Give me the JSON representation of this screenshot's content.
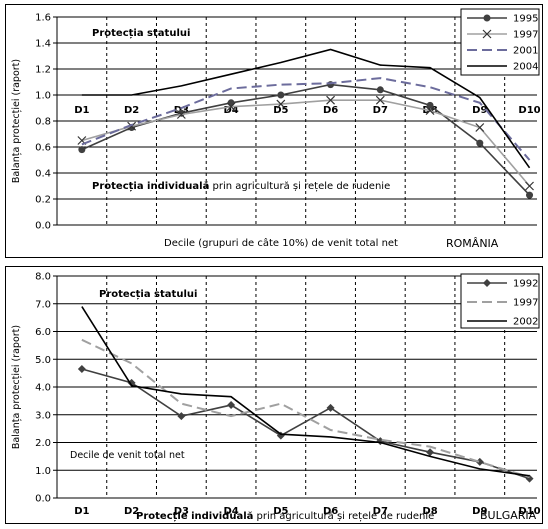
{
  "chart_data": [
    {
      "type": "line",
      "country": "ROMÂNIA",
      "ylabel": "Balanța protecției (raport)",
      "xlabel": "Decile (grupuri de câte 10%) de venit total net",
      "ylim": [
        0,
        1.6
      ],
      "yticks": [
        "0.0",
        "0.2",
        "0.4",
        "0.6",
        "0.8",
        "1.0",
        "1.2",
        "1.4",
        "1.6"
      ],
      "categories": [
        "D1",
        "D2",
        "D3",
        "D4",
        "D5",
        "D6",
        "D7",
        "D8",
        "D9",
        "D10"
      ],
      "annotation_top": "Protecția statului",
      "annotation_bottom_bold": "Protecția individuală",
      "annotation_bottom_rest": " prin agricultură și rețele de rudenie",
      "grid": "vertical-dashed, horizontal-solid",
      "legend_position": "top-right",
      "series": [
        {
          "name": "1995",
          "values": [
            0.58,
            0.75,
            0.86,
            0.94,
            1.0,
            1.08,
            1.04,
            0.92,
            0.63,
            0.23
          ],
          "color": "#404040",
          "marker": "circle",
          "dash": ""
        },
        {
          "name": "1997",
          "values": [
            0.65,
            0.76,
            0.85,
            0.91,
            0.93,
            0.96,
            0.96,
            0.88,
            0.75,
            0.3
          ],
          "color": "#a0a0a0",
          "marker": "x",
          "dash": ""
        },
        {
          "name": "2001",
          "values": [
            0.62,
            0.77,
            0.9,
            1.05,
            1.08,
            1.09,
            1.13,
            1.06,
            0.94,
            0.5
          ],
          "color": "#6c6c9c",
          "marker": "",
          "dash": "10,5"
        },
        {
          "name": "2004",
          "values": [
            1.0,
            1.0,
            1.07,
            1.16,
            1.25,
            1.35,
            1.23,
            1.21,
            0.98,
            0.44
          ],
          "color": "#000000",
          "marker": "",
          "dash": ""
        }
      ]
    },
    {
      "type": "line",
      "country": "BULGARIA",
      "ylabel": "Balanța protecției (raport)",
      "xlabel": "Protecție individuală prin agricultură și rețele de rudenie",
      "ylim": [
        0,
        8
      ],
      "yticks": [
        "0.0",
        "1.0",
        "2.0",
        "3.0",
        "4.0",
        "5.0",
        "6.0",
        "7.0",
        "8.0"
      ],
      "categories": [
        "D1",
        "D2",
        "D3",
        "D4",
        "D5",
        "D6",
        "D7",
        "D8",
        "D9",
        "D10"
      ],
      "annotation_top": "Protecția statului",
      "annotation_inner": "Decile de venit total net",
      "xlabel_bold": "Protecție individuală",
      "xlabel_rest": " prin agricultură și rețele de rudenie",
      "grid": "vertical-dashed, horizontal-solid",
      "legend_position": "top-right",
      "series": [
        {
          "name": "1992",
          "values": [
            4.65,
            4.15,
            2.95,
            3.35,
            2.25,
            3.25,
            2.05,
            1.65,
            1.3,
            0.7
          ],
          "color": "#404040",
          "marker": "diamond",
          "dash": ""
        },
        {
          "name": "1997",
          "values": [
            5.7,
            4.85,
            3.4,
            2.95,
            3.4,
            2.45,
            2.1,
            1.85,
            1.3,
            0.75
          ],
          "color": "#a0a0a0",
          "marker": "",
          "dash": "10,5"
        },
        {
          "name": "2002",
          "values": [
            6.9,
            4.05,
            3.75,
            3.65,
            2.3,
            2.2,
            2.0,
            1.5,
            1.05,
            0.8
          ],
          "color": "#000000",
          "marker": "",
          "dash": ""
        }
      ]
    }
  ]
}
